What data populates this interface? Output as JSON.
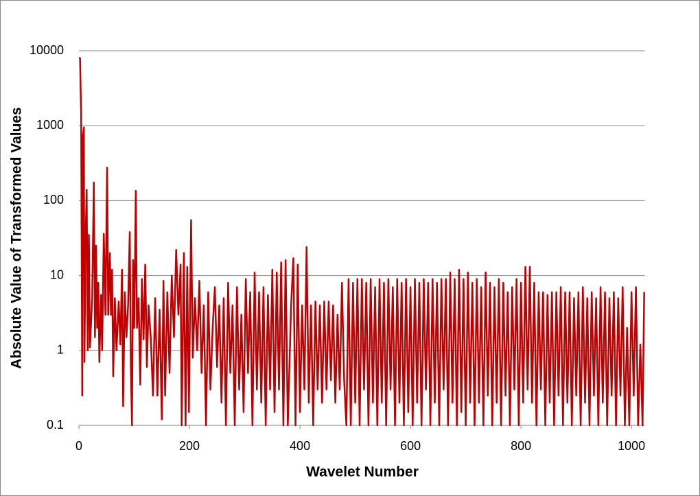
{
  "chart_data": {
    "type": "line",
    "x_label": "Wavelet Number",
    "y_label": "Absolute Value of Transformed Values",
    "color": "#c00000",
    "log_y": true,
    "grid": true,
    "xlim": [
      0,
      1024
    ],
    "xticks": [
      0,
      200,
      400,
      600,
      800,
      1000
    ],
    "ylim": [
      0.1,
      10000
    ],
    "yticks": [
      0.1,
      1,
      10,
      100,
      1000,
      10000
    ],
    "x": [
      0,
      2,
      4,
      6,
      7,
      9,
      10,
      12,
      14,
      16,
      18,
      20,
      24,
      27,
      29,
      31,
      33,
      35,
      37,
      40,
      42,
      45,
      48,
      51,
      53,
      56,
      58,
      60,
      62,
      65,
      68,
      72,
      75,
      78,
      80,
      83,
      86,
      89,
      92,
      94,
      96,
      98,
      100,
      103,
      105,
      108,
      111,
      114,
      117,
      120,
      123,
      126,
      130,
      134,
      138,
      142,
      146,
      150,
      153,
      156,
      160,
      164,
      168,
      172,
      176,
      180,
      184,
      186,
      190,
      193,
      196,
      199,
      203,
      206,
      210,
      214,
      218,
      222,
      226,
      230,
      234,
      238,
      242,
      246,
      250,
      254,
      258,
      262,
      266,
      270,
      274,
      278,
      282,
      286,
      290,
      294,
      298,
      302,
      306,
      310,
      314,
      318,
      322,
      326,
      330,
      334,
      338,
      342,
      346,
      350,
      354,
      358,
      362,
      366,
      370,
      374,
      378,
      384,
      388,
      392,
      396,
      400,
      404,
      408,
      412,
      416,
      420,
      424,
      428,
      432,
      436,
      440,
      444,
      448,
      452,
      456,
      460,
      464,
      468,
      472,
      476,
      480,
      484,
      488,
      492,
      496,
      500,
      504,
      508,
      512,
      516,
      520,
      524,
      528,
      532,
      536,
      540,
      544,
      548,
      552,
      556,
      560,
      564,
      568,
      572,
      576,
      580,
      584,
      588,
      592,
      596,
      600,
      604,
      608,
      612,
      616,
      620,
      624,
      628,
      632,
      636,
      640,
      644,
      648,
      652,
      656,
      660,
      664,
      668,
      672,
      676,
      680,
      684,
      688,
      692,
      696,
      700,
      704,
      708,
      712,
      716,
      720,
      724,
      728,
      732,
      736,
      740,
      744,
      748,
      752,
      756,
      760,
      764,
      768,
      772,
      776,
      780,
      784,
      788,
      792,
      796,
      800,
      804,
      808,
      812,
      816,
      820,
      824,
      828,
      832,
      836,
      840,
      844,
      848,
      852,
      856,
      860,
      864,
      868,
      872,
      876,
      880,
      884,
      888,
      892,
      896,
      900,
      904,
      908,
      912,
      916,
      920,
      924,
      928,
      932,
      936,
      940,
      944,
      948,
      952,
      956,
      960,
      964,
      968,
      972,
      976,
      980,
      984,
      988,
      992,
      996,
      1000,
      1004,
      1008,
      1012,
      1016,
      1020,
      1023
    ],
    "values": [
      8000,
      8000,
      1500,
      0.25,
      700,
      950,
      0.7,
      30,
      140,
      1,
      35,
      1.1,
      5,
      175,
      1.5,
      25,
      2,
      8,
      0.7,
      5.5,
      1,
      36,
      3,
      275,
      3,
      20,
      3,
      12,
      0.45,
      5,
      1,
      4.5,
      1.2,
      12,
      0.18,
      6,
      1.5,
      4,
      38,
      0.6,
      0.1,
      16,
      2,
      135,
      2,
      5,
      0.35,
      9,
      1.4,
      14,
      0.6,
      4,
      1.5,
      0.25,
      5,
      0.25,
      3.5,
      0.12,
      8.5,
      0.25,
      6,
      0.5,
      10,
      1.5,
      22,
      3,
      14,
      0.1,
      20,
      0.1,
      13,
      0.15,
      55,
      0.8,
      5,
      1,
      8.5,
      0.5,
      4,
      0.1,
      6,
      0.3,
      2,
      7,
      0.6,
      4,
      0.2,
      5,
      0.1,
      8,
      0.5,
      4,
      0.1,
      7,
      0.3,
      3,
      0.15,
      9,
      0.5,
      6,
      0.1,
      11,
      0.3,
      6,
      0.2,
      7,
      0.1,
      5.5,
      0.3,
      12,
      0.15,
      11,
      0.3,
      15,
      0.1,
      16,
      0.1,
      4,
      17,
      0.1,
      14,
      0.15,
      4,
      0.3,
      24,
      0.2,
      4,
      0.1,
      4.5,
      0.3,
      4,
      0.2,
      4.5,
      0.3,
      4.5,
      0.4,
      4,
      0.2,
      3,
      0.3,
      8,
      0.4,
      0.1,
      9,
      0.1,
      8,
      0.2,
      9,
      0.1,
      9,
      0.3,
      8,
      0.1,
      9,
      0.2,
      7,
      0.1,
      9,
      0.2,
      8,
      0.1,
      9,
      0.3,
      7,
      0.1,
      9,
      0.2,
      8,
      0.1,
      9,
      0.15,
      7,
      0.1,
      9,
      0.2,
      8,
      0.1,
      9,
      0.3,
      8,
      0.1,
      9,
      0.2,
      8,
      0.1,
      9,
      0.3,
      9,
      0.1,
      11,
      0.2,
      9,
      0.1,
      12,
      0.15,
      9,
      0.1,
      11,
      0.2,
      8,
      0.1,
      9,
      0.2,
      7,
      0.1,
      11,
      0.25,
      8,
      0.1,
      7,
      0.2,
      9,
      0.1,
      8,
      0.25,
      6,
      0.1,
      7,
      0.3,
      9,
      0.1,
      8,
      0.2,
      13,
      0.3,
      13,
      0.2,
      8,
      0.1,
      6,
      0.3,
      6,
      0.1,
      5.5,
      0.2,
      6,
      0.1,
      6,
      0.25,
      7,
      0.1,
      6,
      0.2,
      6,
      0.1,
      5,
      0.25,
      6,
      0.1,
      7,
      0.2,
      5,
      0.1,
      6,
      0.25,
      5,
      0.1,
      7,
      0.2,
      6,
      0.1,
      5,
      0.25,
      6,
      0.1,
      5,
      0.25,
      7,
      0.1,
      2,
      0.1,
      6,
      0.25,
      7,
      0.1,
      1.2,
      0.1,
      6
    ]
  }
}
